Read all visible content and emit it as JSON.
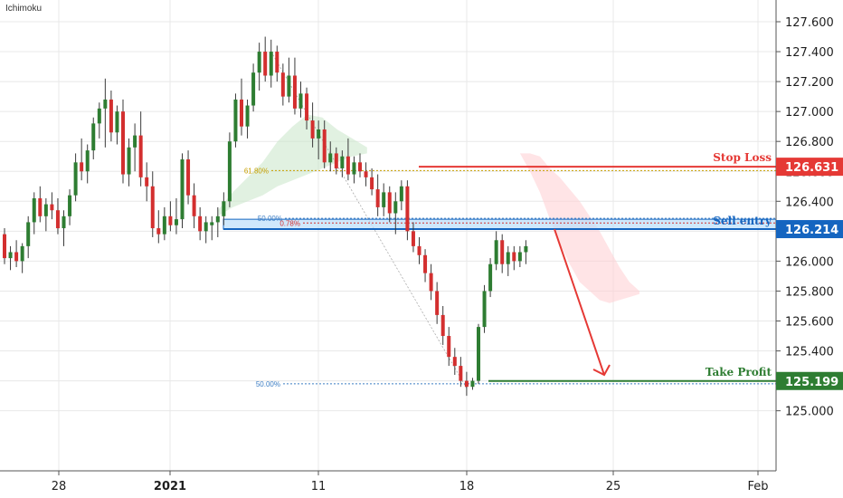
{
  "indicator_label": "Ichimoku",
  "colors": {
    "up": "#2e7d32",
    "down": "#d32f2f",
    "stop": "#e53935",
    "entry": "#1565c0",
    "entry_fill": "#bbdefb",
    "profit": "#2e7d32",
    "cloud_green": "#c8e6c9",
    "cloud_red": "#ffcdd2",
    "fib_orange": "#c8a000",
    "fib_blue": "#3b7dc4",
    "grid": "#e8e8e8",
    "axis": "#555555"
  },
  "chart_data": {
    "type": "candlestick",
    "y_ticks": [
      "127.600",
      "127.400",
      "127.200",
      "127.000",
      "126.800",
      "126.600",
      "126.400",
      "126.200",
      "126.000",
      "125.800",
      "125.600",
      "125.400",
      "125.200",
      "125.000"
    ],
    "x_ticks": [
      {
        "label": "28",
        "bold": false
      },
      {
        "label": "2021",
        "bold": true
      },
      {
        "label": "11",
        "bold": false
      },
      {
        "label": "18",
        "bold": false
      },
      {
        "label": "25",
        "bold": false
      },
      {
        "label": "Feb",
        "bold": false
      }
    ],
    "ylim": [
      124.885,
      127.72
    ],
    "candles": [
      [
        126.18,
        126.22,
        125.98,
        126.02
      ],
      [
        126.02,
        126.1,
        125.94,
        126.06
      ],
      [
        126.06,
        126.14,
        125.96,
        126.0
      ],
      [
        126.0,
        126.12,
        125.92,
        126.1
      ],
      [
        126.1,
        126.3,
        126.02,
        126.26
      ],
      [
        126.26,
        126.46,
        126.18,
        126.42
      ],
      [
        126.42,
        126.5,
        126.26,
        126.3
      ],
      [
        126.3,
        126.42,
        126.2,
        126.38
      ],
      [
        126.38,
        126.46,
        126.28,
        126.34
      ],
      [
        126.34,
        126.42,
        126.18,
        126.22
      ],
      [
        126.22,
        126.34,
        126.1,
        126.3
      ],
      [
        126.3,
        126.48,
        126.24,
        126.44
      ],
      [
        126.44,
        126.72,
        126.4,
        126.66
      ],
      [
        126.66,
        126.82,
        126.54,
        126.6
      ],
      [
        126.6,
        126.78,
        126.52,
        126.74
      ],
      [
        126.74,
        126.96,
        126.68,
        126.92
      ],
      [
        126.92,
        127.06,
        126.82,
        127.02
      ],
      [
        127.02,
        127.22,
        126.76,
        127.08
      ],
      [
        127.08,
        127.14,
        126.8,
        126.86
      ],
      [
        126.86,
        127.04,
        126.78,
        127.0
      ],
      [
        127.0,
        127.08,
        126.52,
        126.58
      ],
      [
        126.58,
        126.82,
        126.5,
        126.76
      ],
      [
        126.76,
        126.92,
        126.6,
        126.84
      ],
      [
        126.84,
        127.0,
        126.5,
        126.56
      ],
      [
        126.56,
        126.66,
        126.4,
        126.5
      ],
      [
        126.5,
        126.6,
        126.16,
        126.22
      ],
      [
        126.22,
        126.34,
        126.12,
        126.18
      ],
      [
        126.18,
        126.36,
        126.14,
        126.3
      ],
      [
        126.3,
        126.4,
        126.2,
        126.24
      ],
      [
        126.24,
        126.42,
        126.18,
        126.28
      ],
      [
        126.28,
        126.72,
        126.22,
        126.68
      ],
      [
        126.68,
        126.74,
        126.38,
        126.44
      ],
      [
        126.44,
        126.52,
        126.22,
        126.3
      ],
      [
        126.3,
        126.36,
        126.14,
        126.2
      ],
      [
        126.2,
        126.3,
        126.12,
        126.26
      ],
      [
        126.24,
        126.3,
        126.14,
        126.26
      ],
      [
        126.26,
        126.36,
        126.16,
        126.3
      ],
      [
        126.3,
        126.46,
        126.24,
        126.4
      ],
      [
        126.4,
        126.86,
        126.36,
        126.8
      ],
      [
        126.8,
        127.12,
        126.76,
        127.08
      ],
      [
        127.08,
        127.22,
        126.84,
        126.9
      ],
      [
        126.9,
        127.08,
        126.82,
        127.04
      ],
      [
        127.04,
        127.32,
        127.0,
        127.26
      ],
      [
        127.26,
        127.46,
        127.14,
        127.4
      ],
      [
        127.4,
        127.5,
        127.2,
        127.24
      ],
      [
        127.24,
        127.48,
        127.16,
        127.4
      ],
      [
        127.4,
        127.44,
        127.2,
        127.26
      ],
      [
        127.26,
        127.32,
        127.04,
        127.1
      ],
      [
        127.1,
        127.36,
        127.06,
        127.24
      ],
      [
        127.24,
        127.36,
        126.98,
        127.02
      ],
      [
        127.02,
        127.2,
        126.96,
        127.12
      ],
      [
        127.12,
        127.16,
        126.88,
        126.94
      ],
      [
        126.94,
        127.06,
        126.76,
        126.82
      ],
      [
        126.82,
        126.94,
        126.68,
        126.88
      ],
      [
        126.88,
        126.94,
        126.62,
        126.66
      ],
      [
        126.66,
        126.8,
        126.6,
        126.72
      ],
      [
        126.72,
        126.76,
        126.58,
        126.62
      ],
      [
        126.62,
        126.74,
        126.56,
        126.7
      ],
      [
        126.7,
        126.82,
        126.54,
        126.58
      ],
      [
        126.58,
        126.7,
        126.52,
        126.66
      ],
      [
        126.66,
        126.72,
        126.56,
        126.6
      ],
      [
        126.6,
        126.66,
        126.5,
        126.56
      ],
      [
        126.56,
        126.62,
        126.44,
        126.48
      ],
      [
        126.48,
        126.58,
        126.3,
        126.36
      ],
      [
        126.36,
        126.52,
        126.3,
        126.46
      ],
      [
        126.46,
        126.5,
        126.26,
        126.32
      ],
      [
        126.32,
        126.46,
        126.18,
        126.4
      ],
      [
        126.4,
        126.54,
        126.34,
        126.5
      ],
      [
        126.5,
        126.54,
        126.14,
        126.2
      ],
      [
        126.2,
        126.26,
        126.06,
        126.1
      ],
      [
        126.1,
        126.16,
        125.98,
        126.04
      ],
      [
        126.04,
        126.08,
        125.86,
        125.92
      ],
      [
        125.92,
        125.98,
        125.74,
        125.8
      ],
      [
        125.8,
        125.86,
        125.58,
        125.64
      ],
      [
        125.64,
        125.7,
        125.44,
        125.5
      ],
      [
        125.5,
        125.56,
        125.3,
        125.36
      ],
      [
        125.36,
        125.42,
        125.24,
        125.3
      ],
      [
        125.3,
        125.36,
        125.16,
        125.2
      ],
      [
        125.2,
        125.26,
        125.1,
        125.16
      ],
      [
        125.16,
        125.22,
        125.14,
        125.2
      ],
      [
        125.2,
        125.58,
        125.18,
        125.56
      ],
      [
        125.56,
        125.84,
        125.52,
        125.8
      ],
      [
        125.8,
        126.02,
        125.76,
        125.98
      ],
      [
        125.98,
        126.2,
        125.94,
        126.14
      ],
      [
        126.14,
        126.18,
        125.92,
        125.98
      ],
      [
        125.98,
        126.1,
        125.9,
        126.06
      ],
      [
        126.06,
        126.1,
        125.94,
        126.0
      ],
      [
        126.0,
        126.1,
        125.96,
        126.06
      ],
      [
        126.06,
        126.14,
        125.98,
        126.1
      ]
    ],
    "cloud_green_upper": [
      126.34,
      126.46,
      126.56,
      126.66,
      126.8,
      126.9,
      126.98,
      126.96,
      126.88,
      126.82,
      126.76
    ],
    "cloud_green_lower": [
      126.3,
      126.36,
      126.4,
      126.44,
      126.5,
      126.54,
      126.58,
      126.62,
      126.66,
      126.7,
      126.72
    ],
    "cloud_red_upper": [
      126.72,
      126.72,
      126.7,
      126.62,
      126.56,
      126.48,
      126.4,
      126.3,
      126.2,
      126.08,
      125.96,
      125.86,
      125.8
    ],
    "cloud_red_lower": [
      126.72,
      126.6,
      126.46,
      126.28,
      126.12,
      125.98,
      125.86,
      125.8,
      125.74,
      125.72,
      125.74,
      125.76,
      125.78
    ],
    "annotations": {
      "stop_loss": {
        "label": "Stop Loss",
        "price": "126.631",
        "value": 126.631
      },
      "sell_entry": {
        "label": "Sell entry",
        "price": "126.214",
        "value": 126.214,
        "zone_top": 126.28,
        "zone_bottom": 126.214
      },
      "take_profit": {
        "label": "Take Profit",
        "price": "125.199",
        "value": 125.199
      },
      "fib_levels": [
        {
          "label": "61.80%",
          "value": 126.605,
          "color": "orange"
        },
        {
          "label": "50.00%",
          "value": 126.286,
          "color": "blue"
        },
        {
          "label": "0.78%",
          "value": 126.255,
          "color": "red"
        },
        {
          "label": "50.00%",
          "value": 125.18,
          "color": "blue"
        }
      ]
    }
  }
}
